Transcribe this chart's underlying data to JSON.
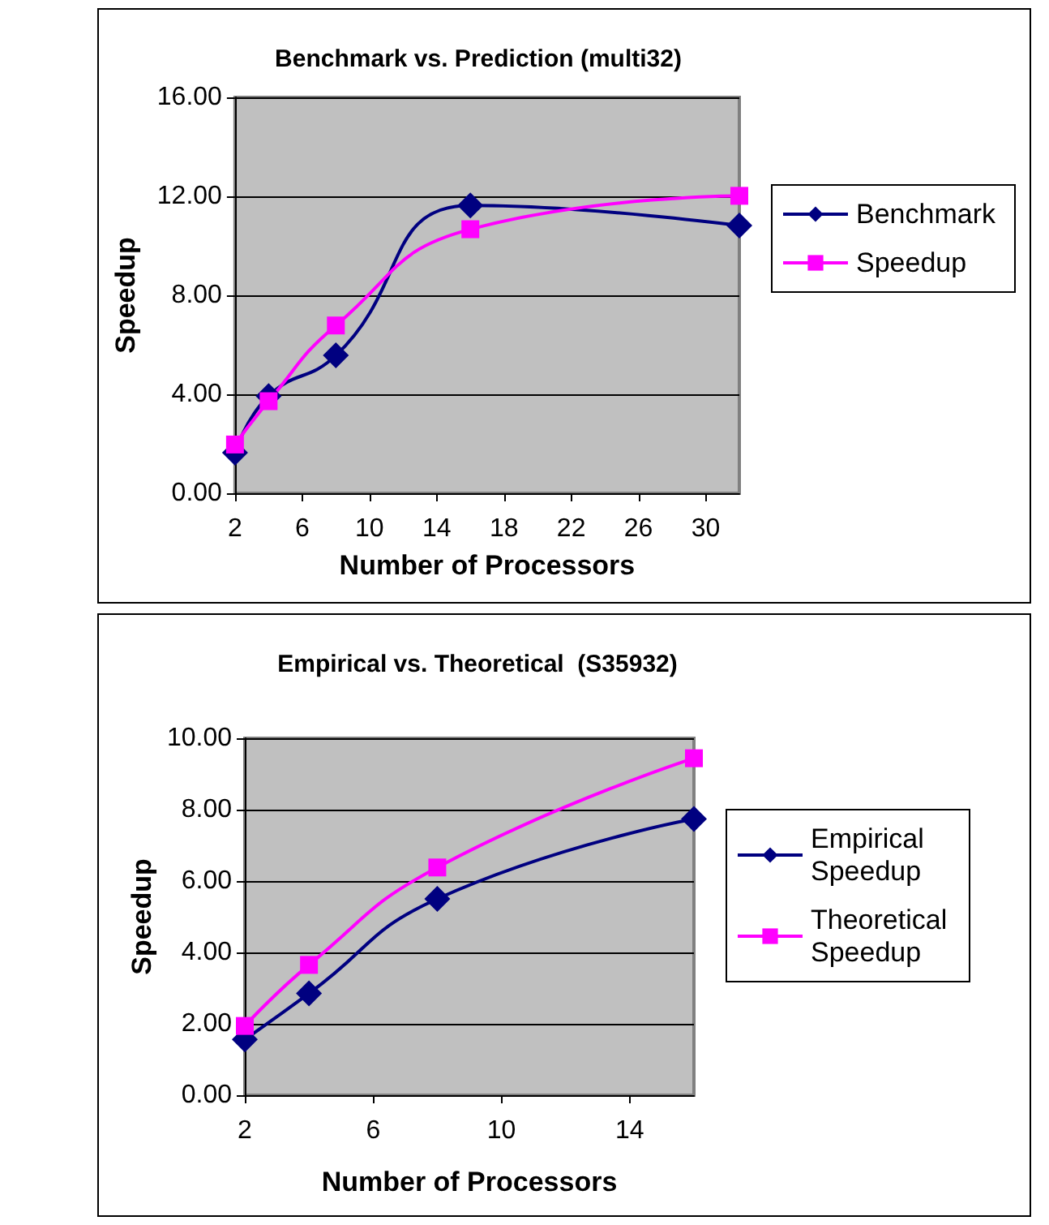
{
  "chart_data": [
    {
      "type": "line",
      "title": "Benchmark vs. Prediction (multi32)",
      "xlabel": "Number of Processors",
      "ylabel": "Speedup",
      "x": [
        2,
        4,
        8,
        16,
        32
      ],
      "xlim": [
        2,
        32
      ],
      "xticks": [
        2,
        6,
        10,
        14,
        18,
        22,
        26,
        30
      ],
      "ylim": [
        0,
        16
      ],
      "yticks": [
        {
          "value": 0,
          "label": "0.00"
        },
        {
          "value": 4,
          "label": "4.00"
        },
        {
          "value": 8,
          "label": "8.00"
        },
        {
          "value": 12,
          "label": "12.00"
        },
        {
          "value": 16,
          "label": "16.00"
        }
      ],
      "grid": "y",
      "legend": "right",
      "line_style": "solid",
      "series": [
        {
          "name": "Benchmark",
          "color": "#000080",
          "marker": "diamond",
          "values": [
            1.64,
            3.93,
            5.57,
            11.63,
            10.82
          ]
        },
        {
          "name": "Speedup",
          "color": "#ff00ff",
          "marker": "square",
          "values": [
            1.97,
            3.72,
            6.78,
            10.67,
            12.02
          ]
        }
      ]
    },
    {
      "type": "line",
      "title": "Empirical vs. Theoretical  (S35932)",
      "xlabel": "Number of Processors",
      "ylabel": "Speedup",
      "x": [
        2,
        4,
        8,
        16
      ],
      "xlim": [
        2,
        16
      ],
      "xticks": [
        2,
        6,
        10,
        14
      ],
      "ylim": [
        0,
        10
      ],
      "yticks": [
        {
          "value": 0,
          "label": "0.00"
        },
        {
          "value": 2,
          "label": "2.00"
        },
        {
          "value": 4,
          "label": "4.00"
        },
        {
          "value": 6,
          "label": "6.00"
        },
        {
          "value": 8,
          "label": "8.00"
        },
        {
          "value": 10,
          "label": "10.00"
        }
      ],
      "grid": "y",
      "legend": "right",
      "line_style": "solid",
      "series": [
        {
          "name": "Empirical Speedup",
          "color": "#000080",
          "marker": "diamond",
          "values": [
            1.56,
            2.85,
            5.5,
            7.74
          ]
        },
        {
          "name": "Theoretical Speedup",
          "color": "#ff00ff",
          "marker": "square",
          "values": [
            1.94,
            3.65,
            6.38,
            9.44
          ]
        }
      ]
    }
  ]
}
